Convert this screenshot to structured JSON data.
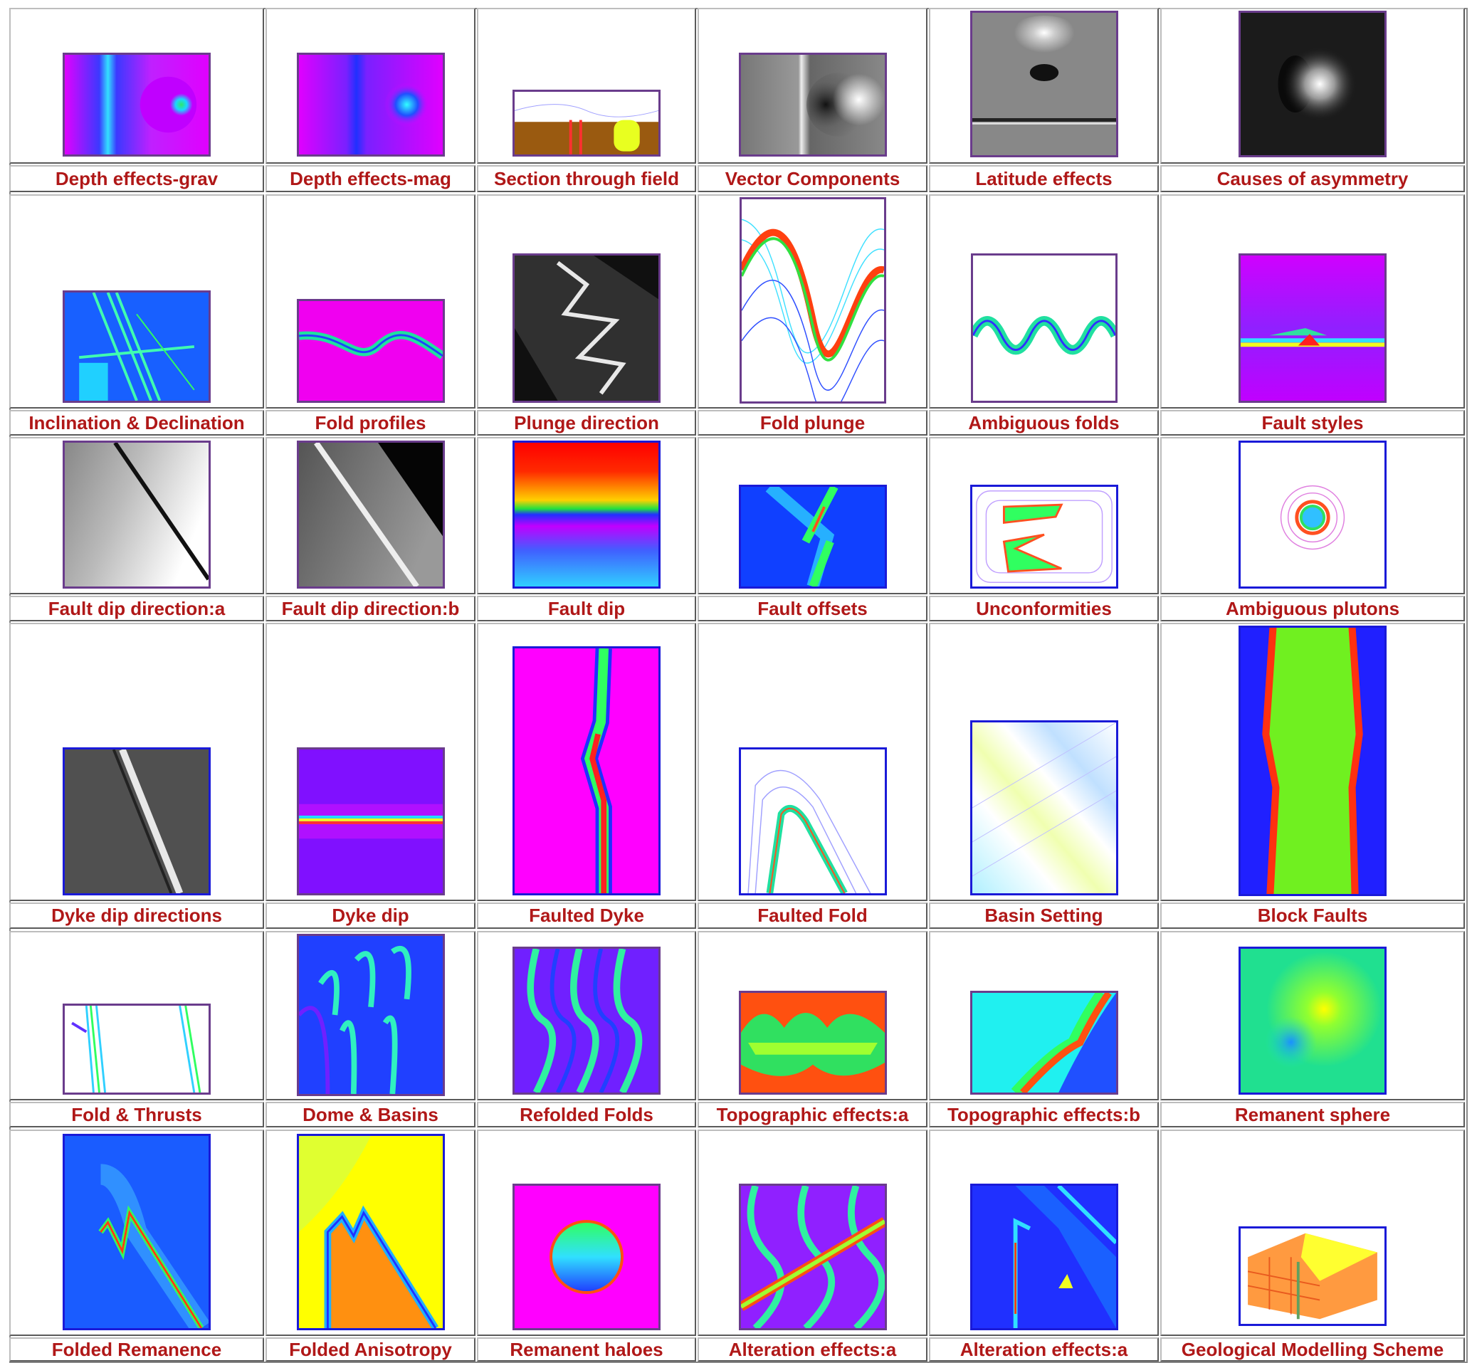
{
  "rows": [
    {
      "items": [
        {
          "name": "depth-effects-grav",
          "label": "Depth effects-grav"
        },
        {
          "name": "depth-effects-mag",
          "label": "Depth effects-mag"
        },
        {
          "name": "section-through-field",
          "label": "Section through field"
        },
        {
          "name": "vector-components",
          "label": "Vector Components"
        },
        {
          "name": "latitude-effects",
          "label": "Latitude effects"
        },
        {
          "name": "causes-of-asymmetry",
          "label": "Causes of asymmetry"
        }
      ]
    },
    {
      "items": [
        {
          "name": "inclination-declination",
          "label": "Inclination & Declination"
        },
        {
          "name": "fold-profiles",
          "label": "Fold profiles"
        },
        {
          "name": "plunge-direction",
          "label": "Plunge direction"
        },
        {
          "name": "fold-plunge",
          "label": "Fold plunge"
        },
        {
          "name": "ambiguous-folds",
          "label": "Ambiguous folds"
        },
        {
          "name": "fault-styles",
          "label": "Fault styles"
        }
      ]
    },
    {
      "items": [
        {
          "name": "fault-dip-direction-a",
          "label": "Fault dip direction:a"
        },
        {
          "name": "fault-dip-direction-b",
          "label": "Fault dip direction:b"
        },
        {
          "name": "fault-dip",
          "label": "Fault dip"
        },
        {
          "name": "fault-offsets",
          "label": "Fault offsets"
        },
        {
          "name": "unconformities",
          "label": "Unconformities"
        },
        {
          "name": "ambiguous-plutons",
          "label": "Ambiguous plutons"
        }
      ]
    },
    {
      "items": [
        {
          "name": "dyke-dip-directions",
          "label": "Dyke dip directions"
        },
        {
          "name": "dyke-dip",
          "label": "Dyke dip"
        },
        {
          "name": "faulted-dyke",
          "label": "Faulted Dyke"
        },
        {
          "name": "faulted-fold",
          "label": "Faulted Fold"
        },
        {
          "name": "basin-setting",
          "label": "Basin Setting"
        },
        {
          "name": "block-faults",
          "label": "Block Faults"
        }
      ]
    },
    {
      "items": [
        {
          "name": "fold-thrusts",
          "label": "Fold & Thrusts"
        },
        {
          "name": "dome-basins",
          "label": "Dome & Basins"
        },
        {
          "name": "refolded-folds",
          "label": "Refolded Folds"
        },
        {
          "name": "topographic-effects-a",
          "label": "Topographic effects:a"
        },
        {
          "name": "topographic-effects-b",
          "label": "Topographic effects:b"
        },
        {
          "name": "remanent-sphere",
          "label": "Remanent sphere"
        }
      ]
    },
    {
      "items": [
        {
          "name": "folded-remanence",
          "label": "Folded Remanence"
        },
        {
          "name": "folded-anisotropy",
          "label": "Folded Anisotropy"
        },
        {
          "name": "remanent-haloes",
          "label": "Remanent haloes"
        },
        {
          "name": "alteration-effects-a-1",
          "label": "Alteration effects:a"
        },
        {
          "name": "alteration-effects-a-2",
          "label": "Alteration effects:a"
        },
        {
          "name": "geological-modelling-scheme",
          "label": "Geological Modelling Scheme"
        }
      ]
    }
  ]
}
